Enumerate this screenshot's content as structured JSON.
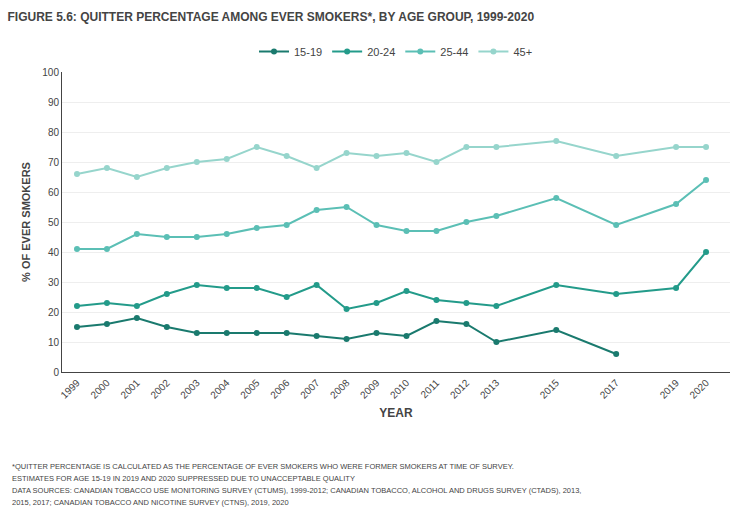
{
  "chart_data": {
    "type": "line",
    "title": "FIGURE 5.6: QUITTER PERCENTAGE AMONG EVER SMOKERS*, BY AGE GROUP, 1999-2020",
    "x_label": "YEAR",
    "y_label": "% OF EVER SMOKERS",
    "x": [
      1999,
      2000,
      2001,
      2002,
      2003,
      2004,
      2005,
      2006,
      2007,
      2008,
      2009,
      2010,
      2011,
      2012,
      2013,
      2015,
      2017,
      2019,
      2020
    ],
    "series": [
      {
        "name": "15-19",
        "color": "#1a7a6e",
        "values": [
          15,
          16,
          18,
          15,
          13,
          13,
          13,
          13,
          12,
          11,
          13,
          12,
          17,
          16,
          10,
          14,
          6,
          null,
          null
        ]
      },
      {
        "name": "20-24",
        "color": "#239b8a",
        "values": [
          22,
          23,
          22,
          26,
          29,
          28,
          28,
          25,
          29,
          21,
          23,
          27,
          24,
          23,
          22,
          29,
          26,
          28,
          40
        ]
      },
      {
        "name": "25-44",
        "color": "#5bbfb5",
        "values": [
          41,
          41,
          46,
          45,
          45,
          46,
          48,
          49,
          54,
          55,
          49,
          47,
          47,
          50,
          52,
          58,
          49,
          56,
          64
        ]
      },
      {
        "name": "45+",
        "color": "#96d5cc",
        "values": [
          66,
          68,
          65,
          68,
          70,
          71,
          75,
          72,
          68,
          73,
          72,
          73,
          70,
          75,
          75,
          77,
          72,
          75,
          75
        ]
      }
    ],
    "xlim": [
      1998.5,
      2020.8
    ],
    "xticks": [
      1999,
      2000,
      2001,
      2002,
      2003,
      2004,
      2005,
      2006,
      2007,
      2008,
      2009,
      2010,
      2011,
      2012,
      2013,
      2015,
      2017,
      2019,
      2020
    ],
    "ylim": [
      0,
      100
    ],
    "yticks": [
      0,
      10,
      20,
      30,
      40,
      50,
      60,
      70,
      80,
      90,
      100
    ],
    "grid": "y",
    "legend": "top",
    "marker": "circle",
    "annotations": [
      "*QUITTER PERCENTAGE IS CALCULATED AS THE PERCENTAGE OF EVER SMOKERS WHO WERE FORMER SMOKERS AT TIME OF SURVEY.",
      "ESTIMATES FOR AGE 15-19 IN 2019 AND 2020 SUPPRESSED DUE TO UNACCEPTABLE QUALITY",
      "DATA SOURCES: CANADIAN TOBACCO USE MONITORING SURVEY (CTUMS), 1999-2012; CANADIAN TOBACCO, ALCOHOL AND DRUGS SURVEY (CTADS), 2013,",
      "2015, 2017; CANADIAN TOBACCO AND NICOTINE SURVEY (CTNS), 2019, 2020"
    ]
  }
}
